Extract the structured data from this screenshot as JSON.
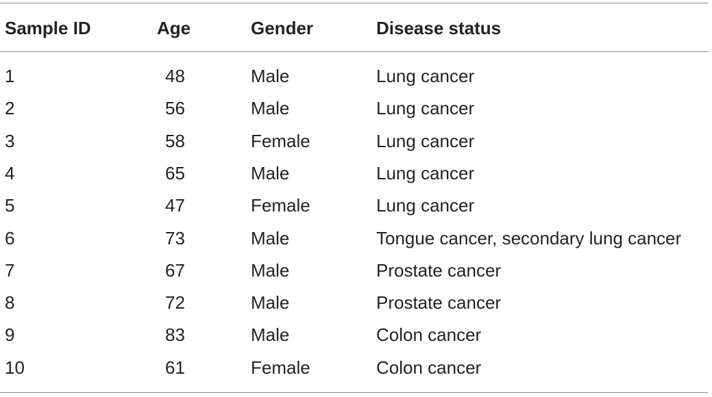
{
  "table": {
    "columns": [
      "Sample ID",
      "Age",
      "Gender",
      "Disease status"
    ],
    "rows": [
      {
        "id": "1",
        "age": "48",
        "gender": "Male",
        "status": "Lung cancer"
      },
      {
        "id": "2",
        "age": "56",
        "gender": "Male",
        "status": "Lung cancer"
      },
      {
        "id": "3",
        "age": "58",
        "gender": "Female",
        "status": "Lung cancer"
      },
      {
        "id": "4",
        "age": "65",
        "gender": "Male",
        "status": "Lung cancer"
      },
      {
        "id": "5",
        "age": "47",
        "gender": "Female",
        "status": "Lung cancer"
      },
      {
        "id": "6",
        "age": "73",
        "gender": "Male",
        "status": "Tongue cancer, secondary lung cancer"
      },
      {
        "id": "7",
        "age": "67",
        "gender": "Male",
        "status": "Prostate cancer"
      },
      {
        "id": "8",
        "age": "72",
        "gender": "Male",
        "status": "Prostate cancer"
      },
      {
        "id": "9",
        "age": "83",
        "gender": "Male",
        "status": "Colon cancer"
      },
      {
        "id": "10",
        "age": "61",
        "gender": "Female",
        "status": "Colon cancer"
      }
    ]
  }
}
